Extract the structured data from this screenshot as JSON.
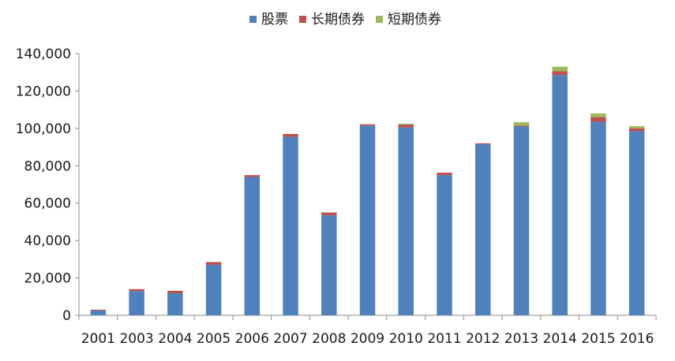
{
  "chart_data": {
    "type": "bar",
    "stacked": true,
    "title": "",
    "xlabel": "",
    "ylabel": "",
    "ylim": [
      0,
      140000
    ],
    "ytick_values": [
      0,
      20000,
      40000,
      60000,
      80000,
      100000,
      120000,
      140000
    ],
    "ytick_labels": [
      "0",
      "20,000",
      "40,000",
      "60,000",
      "80,000",
      "100,000",
      "120,000",
      "140,000"
    ],
    "categories": [
      "2001",
      "2003",
      "2004",
      "2005",
      "2006",
      "2007",
      "2008",
      "2009",
      "2010",
      "2011",
      "2012",
      "2013",
      "2014",
      "2015",
      "2016"
    ],
    "series": [
      {
        "name": "股票",
        "color": "#4f81bd",
        "values": [
          2500,
          13000,
          11800,
          27000,
          74000,
          95500,
          53500,
          101500,
          100500,
          75000,
          91500,
          101000,
          128500,
          103500,
          98500
        ]
      },
      {
        "name": "长期债券",
        "color": "#c0504d",
        "values": [
          500,
          1000,
          1300,
          1500,
          1000,
          1500,
          1500,
          700,
          1500,
          1300,
          500,
          500,
          2000,
          2500,
          1500
        ]
      },
      {
        "name": "短期债券",
        "color": "#9bbb59",
        "values": [
          0,
          0,
          0,
          0,
          0,
          0,
          0,
          0,
          500,
          0,
          0,
          1800,
          2500,
          2000,
          1200
        ]
      }
    ],
    "grid": false,
    "legend_position": "top-center"
  }
}
